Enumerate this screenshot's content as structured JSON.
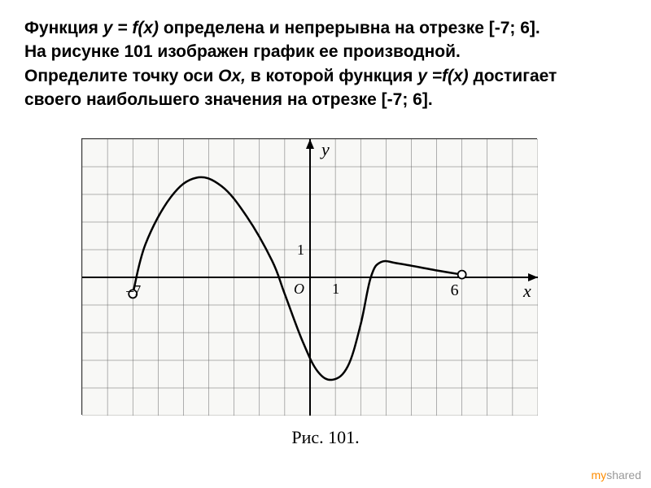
{
  "problem": {
    "line1_prefix": "Функция ",
    "line1_func": "y = f(x)",
    "line1_suffix": " определена и непрерывна на отрезке [-7; 6].",
    "line2": "На рисунке 101 изображен график ее производной.",
    "line3_prefix": "Определите точку оси ",
    "line3_axis": "Ox,",
    "line3_mid": " в которой функция ",
    "line3_func": "y =f(x)",
    "line3_suffix": " достигает",
    "line4": "своего наибольшего значения на отрезке [-7; 6].",
    "fontsize": 21,
    "text_color": "#000000"
  },
  "chart": {
    "type": "line",
    "caption": "Рис. 101.",
    "caption_fontsize": 22,
    "xlim": [
      -9,
      9
    ],
    "ylim": [
      -5,
      5
    ],
    "xtick_step": 1,
    "ytick_step": 1,
    "grid_color": "#666666",
    "grid_width": 0.5,
    "axis_color": "#000000",
    "axis_width": 2,
    "background_color": "#f8f8f6",
    "curve_color": "#000000",
    "curve_width": 2.5,
    "x_label": "x",
    "y_label": "y",
    "label_fontsize": 22,
    "label_font": "Times New Roman",
    "tick_labels": {
      "x_neg7": "–7",
      "x_1": "1",
      "x_6": "6",
      "y_1": "1",
      "origin": "O"
    },
    "tick_fontsize": 18,
    "curve_points": [
      {
        "x": -7,
        "y": -0.6
      },
      {
        "x": -6.5,
        "y": 1.2
      },
      {
        "x": -5.5,
        "y": 2.9
      },
      {
        "x": -4.5,
        "y": 3.6
      },
      {
        "x": -3.5,
        "y": 3.3
      },
      {
        "x": -2.5,
        "y": 2.2
      },
      {
        "x": -1.5,
        "y": 0.6
      },
      {
        "x": -1.0,
        "y": -0.6
      },
      {
        "x": -0.3,
        "y": -2.3
      },
      {
        "x": 0.3,
        "y": -3.4
      },
      {
        "x": 0.9,
        "y": -3.7
      },
      {
        "x": 1.5,
        "y": -3.2
      },
      {
        "x": 2.0,
        "y": -1.7
      },
      {
        "x": 2.4,
        "y": 0.0
      },
      {
        "x": 2.8,
        "y": 0.55
      },
      {
        "x": 3.5,
        "y": 0.5
      },
      {
        "x": 5.0,
        "y": 0.25
      },
      {
        "x": 6.0,
        "y": 0.1
      }
    ],
    "open_points": [
      {
        "x": -7,
        "y": -0.6
      },
      {
        "x": 6,
        "y": 0.1
      }
    ],
    "open_point_radius": 5,
    "open_point_fill": "#ffffff",
    "open_point_stroke": "#000000",
    "open_point_stroke_width": 1.8
  },
  "footer": {
    "prefix": "my",
    "suffix": "shared"
  }
}
